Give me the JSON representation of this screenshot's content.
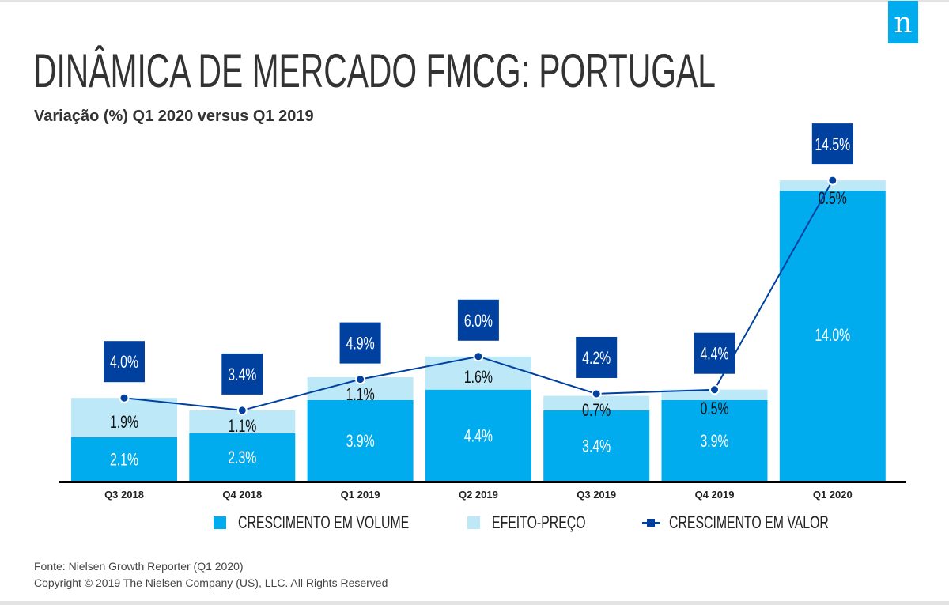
{
  "header": {
    "title": "DINÂMICA DE MERCADO FMCG: PORTUGAL",
    "subtitle": "Variação (%) Q1 2020 versus Q1 2019",
    "logo_letter": "n",
    "logo_icon": "nielsen-logo-icon"
  },
  "colors": {
    "volume": "#00acee",
    "price": "#bde8f8",
    "value_line": "#0041a0",
    "axis": "#000000",
    "title_text": "#333333",
    "logo_bg": "#00acee"
  },
  "chart_data": {
    "type": "bar",
    "stacked": true,
    "title": "DINÂMICA DE MERCADO FMCG: PORTUGAL",
    "subtitle": "Variação (%) Q1 2020 versus Q1 2019",
    "xlabel": "",
    "ylabel": "",
    "ylim": [
      0,
      15.5
    ],
    "grid": false,
    "legend_position": "bottom",
    "categories": [
      "Q3 2018",
      "Q4 2018",
      "Q1 2019",
      "Q2 2019",
      "Q3 2019",
      "Q4 2019",
      "Q1 2020"
    ],
    "series": [
      {
        "name": "CRESCIMENTO EM VOLUME",
        "type": "bar",
        "values": [
          2.1,
          2.3,
          3.9,
          4.4,
          3.4,
          3.9,
          14.0
        ],
        "labels": [
          "2.1%",
          "2.3%",
          "3.9%",
          "4.4%",
          "3.4%",
          "3.9%",
          "14.0%"
        ]
      },
      {
        "name": "EFEITO-PREÇO",
        "type": "bar",
        "values": [
          1.9,
          1.1,
          1.1,
          1.6,
          0.7,
          0.5,
          0.5
        ],
        "labels": [
          "1.9%",
          "1.1%",
          "1.1%",
          "1.6%",
          "0.7%",
          "0.5%",
          "0.5%"
        ]
      },
      {
        "name": "CRESCIMENTO EM VALOR",
        "type": "line",
        "values": [
          4.0,
          3.4,
          4.9,
          6.0,
          4.2,
          4.4,
          14.5
        ],
        "labels": [
          "4.0%",
          "3.4%",
          "4.9%",
          "6.0%",
          "4.2%",
          "4.4%",
          "14.5%"
        ]
      }
    ]
  },
  "legend": {
    "items": [
      {
        "label": "CRESCIMENTO EM VOLUME",
        "icon": "volume-swatch-icon"
      },
      {
        "label": "EFEITO-PREÇO",
        "icon": "price-swatch-icon"
      },
      {
        "label": "CRESCIMENTO EM VALOR",
        "icon": "value-line-icon"
      }
    ]
  },
  "footer": {
    "source": "Fonte: Nielsen Growth Reporter (Q1 2020)",
    "copyright": "Copyright © 2019 The Nielsen Company (US), LLC. All Rights Reserved"
  }
}
